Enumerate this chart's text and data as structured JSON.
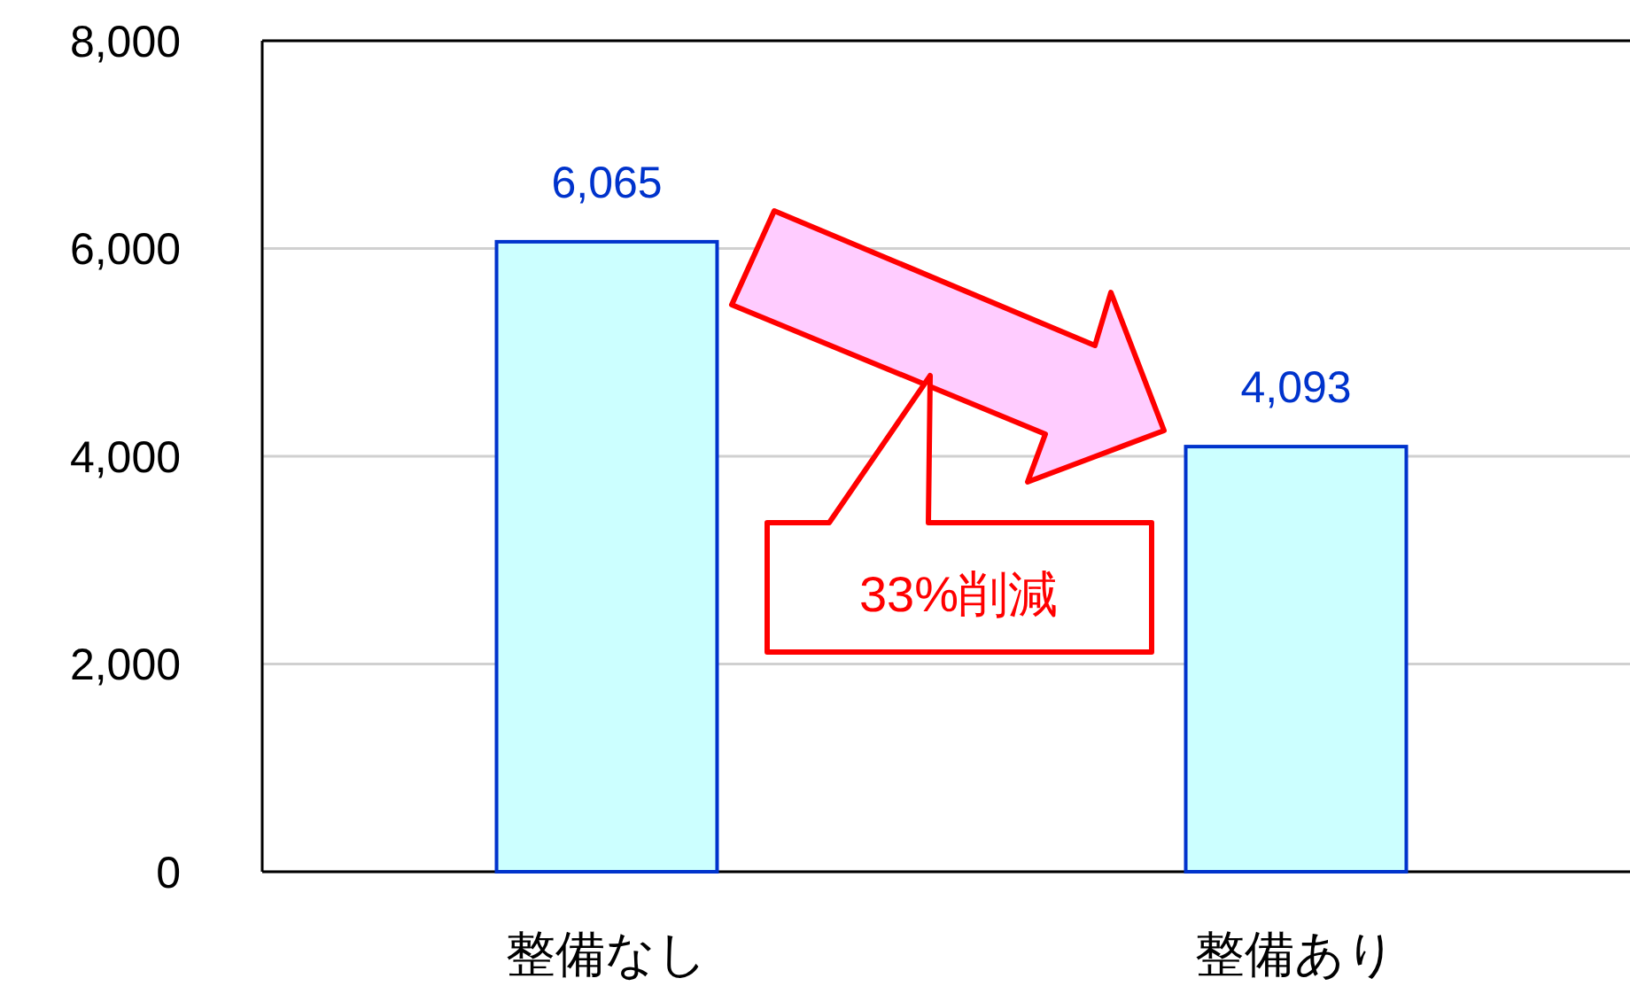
{
  "chart_data": {
    "type": "bar",
    "categories": [
      "整備なし",
      "整備あり"
    ],
    "values": [
      6065,
      4093
    ],
    "color": "#ccffff",
    "ylim": [
      0,
      8000
    ],
    "yticks": [
      {
        "value": 0,
        "label": "0"
      },
      {
        "value": 2000,
        "label": "2,000"
      },
      {
        "value": 4000,
        "label": "4,000"
      },
      {
        "value": 6000,
        "label": "6,000"
      },
      {
        "value": 8000,
        "label": "8,000"
      }
    ],
    "grid": "y",
    "data_labels": true,
    "value_labels": [
      "6,065",
      "4,093"
    ],
    "annotations": [
      "33%削減"
    ]
  }
}
